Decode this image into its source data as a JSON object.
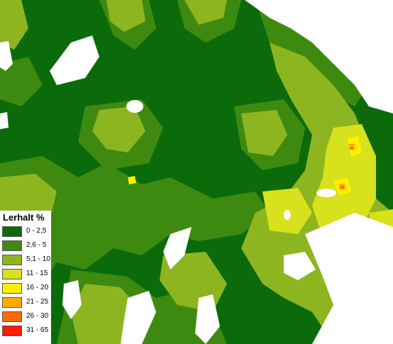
{
  "legend": {
    "title": "Lerhalt %",
    "classes": [
      {
        "label": "0 - 2,5",
        "color": "#0b6b0b"
      },
      {
        "label": "2,6 - 5",
        "color": "#3e8a10"
      },
      {
        "label": "5,1 - 10",
        "color": "#8db520"
      },
      {
        "label": "11 - 15",
        "color": "#d7e11c"
      },
      {
        "label": "16 - 20",
        "color": "#fff000"
      },
      {
        "label": "21 - 25",
        "color": "#ffaa00"
      },
      {
        "label": "26 - 30",
        "color": "#ff6a00"
      },
      {
        "label": "31 - 65",
        "color": "#ff1a00"
      }
    ]
  },
  "water_color": "#ffffff"
}
